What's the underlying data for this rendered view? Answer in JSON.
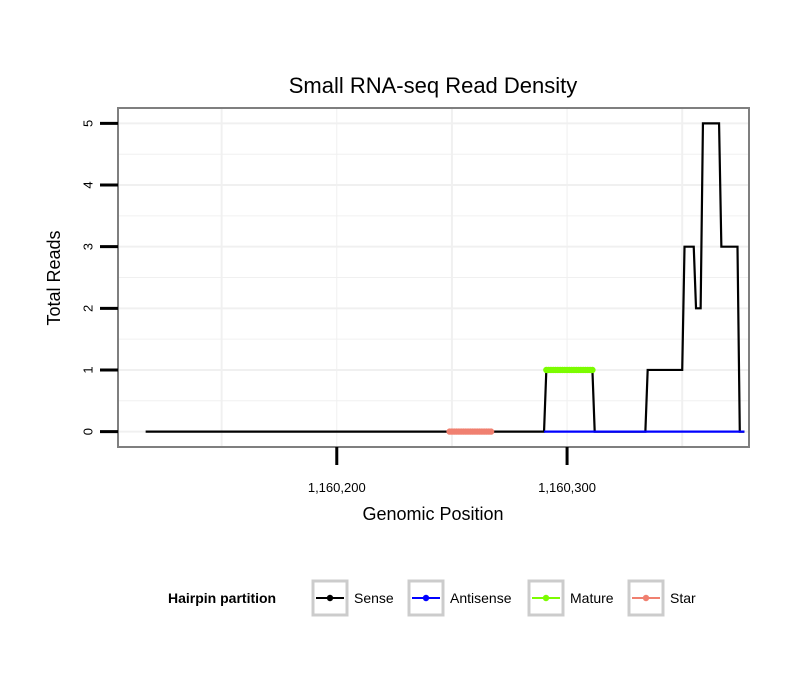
{
  "chart_data": {
    "type": "line",
    "title": "Small RNA-seq Read Density",
    "xlabel": "Genomic Position",
    "ylabel": "Total Reads",
    "xlim": [
      1160105,
      1160379
    ],
    "ylim": [
      -0.25,
      5.25
    ],
    "x_ticks": [
      1160200,
      1160300
    ],
    "x_tick_labels": [
      "1,160,200",
      "1,160,300"
    ],
    "y_ticks": [
      0,
      1,
      2,
      3,
      4,
      5
    ],
    "y_tick_labels": [
      "0",
      "1",
      "2",
      "3",
      "4",
      "5"
    ],
    "grid": true,
    "legend": {
      "title": "Hairpin partition",
      "position": "bottom",
      "entries": [
        {
          "label": "Sense",
          "color": "#000000"
        },
        {
          "label": "Antisense",
          "color": "#0000ff"
        },
        {
          "label": "Mature",
          "color": "#7cfc00"
        },
        {
          "label": "Star",
          "color": "#f08070"
        }
      ]
    },
    "series": [
      {
        "name": "Sense",
        "color": "#000000",
        "style": "line",
        "points": [
          [
            1160117,
            0
          ],
          [
            1160290,
            0
          ],
          [
            1160291,
            1
          ],
          [
            1160311,
            1
          ],
          [
            1160312,
            0
          ],
          [
            1160334,
            0
          ],
          [
            1160335,
            1
          ],
          [
            1160350,
            1
          ],
          [
            1160351,
            3
          ],
          [
            1160355,
            3
          ],
          [
            1160356,
            2
          ],
          [
            1160358,
            2
          ],
          [
            1160359,
            5
          ],
          [
            1160366,
            5
          ],
          [
            1160367,
            3
          ],
          [
            1160374,
            3
          ],
          [
            1160375,
            0
          ],
          [
            1160377,
            0
          ]
        ]
      },
      {
        "name": "Antisense",
        "color": "#0000ff",
        "style": "line",
        "points": [
          [
            1160290,
            0
          ],
          [
            1160377,
            0
          ]
        ]
      },
      {
        "name": "Mature",
        "color": "#7cfc00",
        "style": "points",
        "x_start": 1160291,
        "x_end": 1160311,
        "y": 1
      },
      {
        "name": "Star",
        "color": "#f08070",
        "style": "points",
        "x_start": 1160249,
        "x_end": 1160267,
        "y": 0
      }
    ]
  }
}
